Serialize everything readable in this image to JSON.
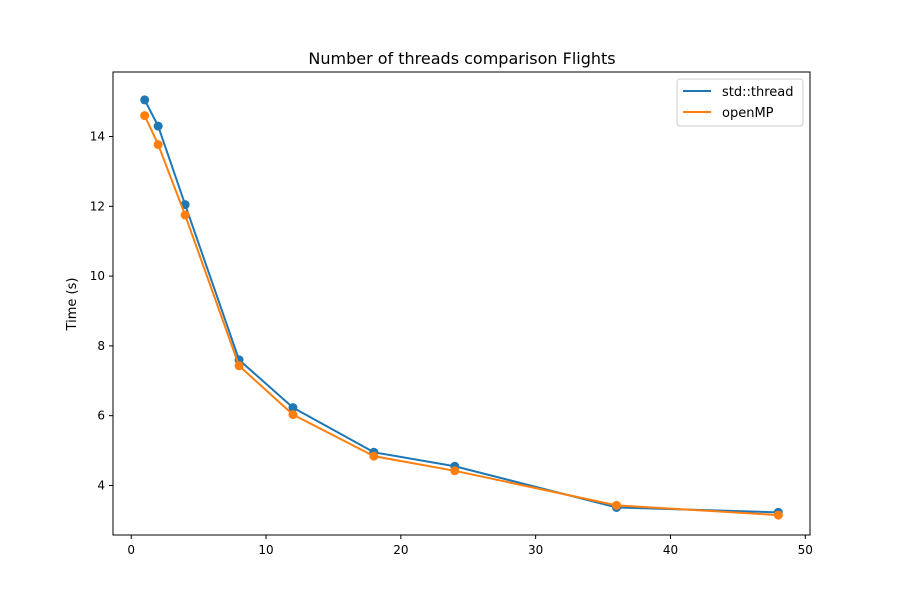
{
  "chart_data": {
    "type": "line",
    "title": "Number of threads comparison Flights",
    "xlabel": "",
    "ylabel": "Time (s)",
    "xlim": [
      -1.35,
      50.35
    ],
    "ylim": [
      2.58,
      15.85
    ],
    "xticks": [
      0,
      10,
      20,
      30,
      40,
      50
    ],
    "yticks": [
      4,
      6,
      8,
      10,
      12,
      14
    ],
    "grid": false,
    "legend_position": "top-right",
    "markers": true,
    "x": [
      1,
      2,
      4,
      8,
      12,
      18,
      24,
      36,
      48
    ],
    "series": [
      {
        "name": "std::thread",
        "color": "#1f77b4",
        "values": [
          15.05,
          14.3,
          12.05,
          7.6,
          6.23,
          4.95,
          4.55,
          3.37,
          3.23
        ]
      },
      {
        "name": "openMP",
        "color": "#ff7f0e",
        "values": [
          14.6,
          13.77,
          11.75,
          7.43,
          6.03,
          4.84,
          4.42,
          3.43,
          3.15
        ]
      }
    ]
  }
}
